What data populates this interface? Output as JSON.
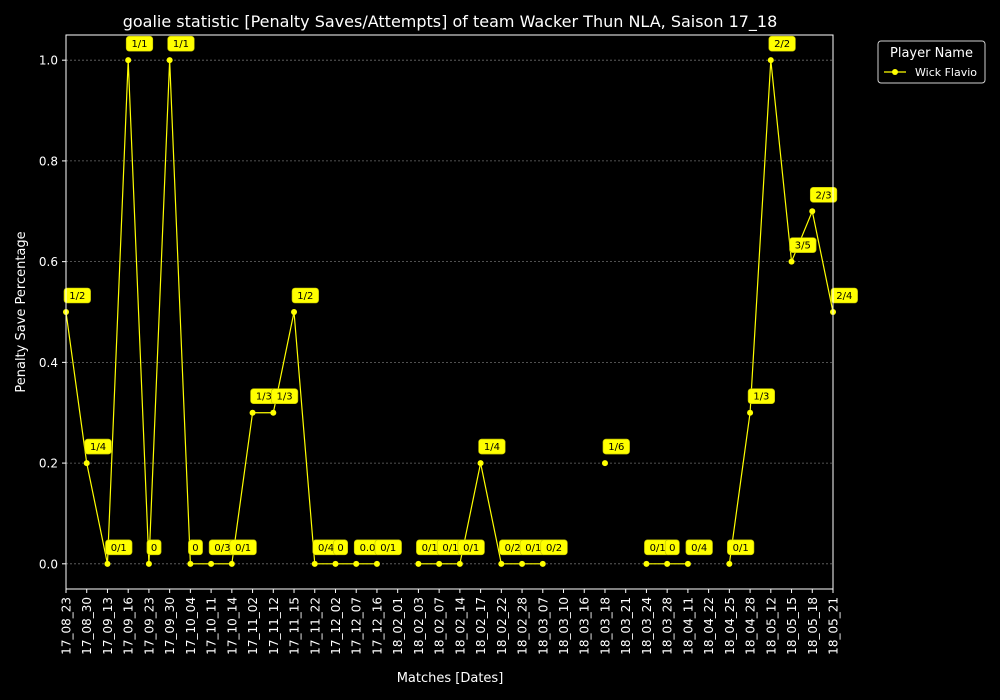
{
  "chart_data": {
    "type": "line",
    "title": "goalie statistic [Penalty Saves/Attempts] of team Wacker Thun NLA, Saison 17_18",
    "xlabel": "Matches [Dates]",
    "ylabel": "Penalty Save Percentage",
    "ylim": [
      -0.05,
      1.05
    ],
    "yticks": [
      0.0,
      0.2,
      0.4,
      0.6,
      0.8,
      1.0
    ],
    "grid": true,
    "legend": {
      "title": "Player Name",
      "placement": "top-right-outside"
    },
    "colors": {
      "background": "#000000",
      "series": "#ffff00",
      "text": "#ffffff",
      "grid": "#6b6b6b",
      "label_bg": "#ffff00"
    },
    "categories": [
      "17_08_23",
      "17_08_30",
      "17_09_13",
      "17_09_16",
      "17_09_23",
      "17_09_30",
      "17_10_04",
      "17_10_11",
      "17_10_14",
      "17_11_02",
      "17_11_12",
      "17_11_15",
      "17_11_22",
      "17_12_02",
      "17_12_07",
      "17_12_16",
      "18_02_01",
      "18_02_03",
      "18_02_07",
      "18_02_14",
      "18_02_17",
      "18_02_22",
      "18_02_28",
      "18_03_07",
      "18_03_10",
      "18_03_16",
      "18_03_18",
      "18_03_21",
      "18_03_24",
      "18_03_28",
      "18_04_11",
      "18_04_22",
      "18_04_25",
      "18_04_28",
      "18_05_12",
      "18_05_15",
      "18_05_18",
      "18_05_21"
    ],
    "series": [
      {
        "name": "Wick Flavio",
        "values": [
          0.5,
          0.2,
          0.0,
          1.0,
          0.0,
          1.0,
          0.0,
          0.0,
          0.0,
          0.3,
          0.3,
          0.5,
          0.0,
          0.0,
          0.0,
          0.0,
          null,
          0.0,
          0.0,
          0.0,
          0.2,
          0.0,
          0.0,
          0.0,
          null,
          null,
          0.2,
          null,
          0.0,
          0.0,
          0.0,
          null,
          0.0,
          0.3,
          1.0,
          0.6,
          0.7,
          0.5
        ],
        "labels": [
          "1/2",
          "1/4",
          "0/1",
          "1/1",
          "0",
          "1/1",
          "0",
          "0/3",
          "0/1",
          "1/3",
          "1/3",
          "1/2",
          "0/4",
          "0",
          "0.0",
          "0/1",
          null,
          "0/1",
          "0/1",
          "0/1",
          "1/4",
          "0/2",
          "0/1",
          "0/2",
          null,
          null,
          "1/6",
          null,
          "0/1",
          "0",
          "0/4",
          null,
          "0/1",
          "1/3",
          "2/2",
          "3/5",
          "2/3",
          "2/4"
        ]
      }
    ]
  }
}
